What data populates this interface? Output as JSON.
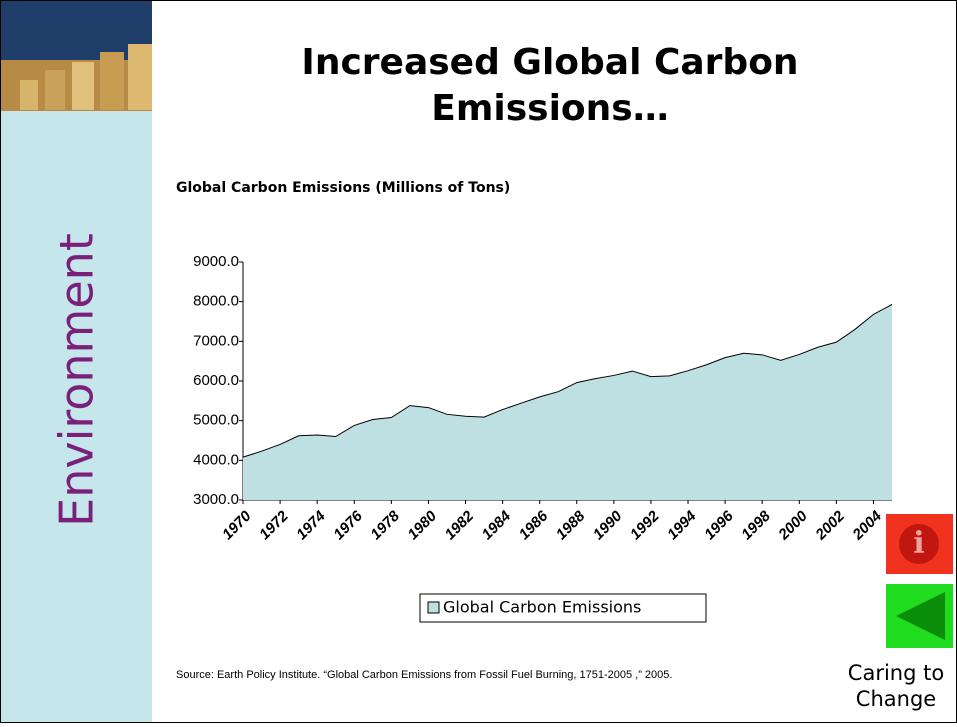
{
  "slide": {
    "sidebar_label": "Environment",
    "title": "Increased Global Carbon Emissions…",
    "source": "Source: Earth Policy Institute. “Global Carbon Emissions from Fossil Fuel Burning, 1751-2005 ,” 2005.",
    "footer": "Caring to Change"
  },
  "chart_data": {
    "type": "area",
    "title": "Global Carbon Emissions (Millions of Tons)",
    "categories": [
      "1970",
      null,
      "1972",
      null,
      "1974",
      null,
      "1976",
      null,
      "1978",
      null,
      "1980",
      null,
      "1982",
      null,
      "1984",
      null,
      "1986",
      null,
      "1988",
      null,
      "1990",
      null,
      "1992",
      null,
      "1994",
      null,
      "1996",
      null,
      "1998",
      null,
      "2000",
      null,
      "2002",
      null,
      "2004",
      null
    ],
    "series": [
      {
        "name": "Global Carbon Emissions",
        "color": "#bfe0e3",
        "values": [
          4080,
          4230,
          4400,
          4620,
          4640,
          4600,
          4880,
          5030,
          5080,
          5380,
          5330,
          5160,
          5110,
          5090,
          5280,
          5440,
          5600,
          5730,
          5960,
          6060,
          6140,
          6250,
          6110,
          6130,
          6260,
          6410,
          6590,
          6700,
          6660,
          6520,
          6670,
          6850,
          6980,
          7300,
          7680,
          7930
        ]
      }
    ],
    "ylim": [
      3000,
      9000
    ],
    "yticks": [
      {
        "value": 3000,
        "label": "3000.0"
      },
      {
        "value": 4000,
        "label": "4000.0"
      },
      {
        "value": 5000,
        "label": "5000.0"
      },
      {
        "value": 6000,
        "label": "6000.0"
      },
      {
        "value": 7000,
        "label": "7000.0"
      },
      {
        "value": 8000,
        "label": "8000.0"
      },
      {
        "value": 9000,
        "label": "9000.0"
      }
    ],
    "grid": false
  }
}
